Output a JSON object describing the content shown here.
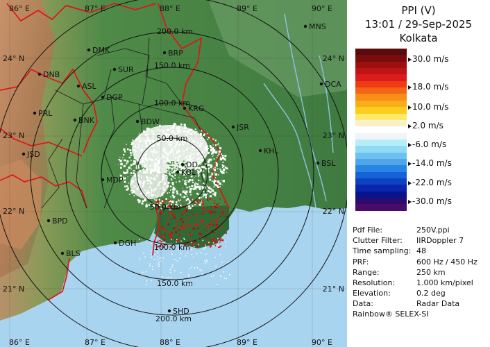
{
  "header": {
    "product": "PPI (V)",
    "datetime": "13:01 / 29-Sep-2025",
    "station": "Kolkata"
  },
  "colors": {
    "ocean": "#a9d4ef",
    "land_low": "#4f8a48",
    "land_hill": "#d29a68",
    "boundary": "#e01414",
    "district": "#222222",
    "ring": "#111111"
  },
  "longitude_labels": [
    "86° E",
    "87° E",
    "88° E",
    "89° E",
    "90° E"
  ],
  "latitude_labels": [
    "24° N",
    "23° N",
    "22° N",
    "21° N"
  ],
  "range_rings": [
    "50.0 km",
    "100.0 km",
    "150.0 km",
    "200.0 km"
  ],
  "places": [
    "MNS",
    "DMK",
    "BRP",
    "DNB",
    "SUR",
    "ASL",
    "DGP",
    "DCA",
    "PRL",
    "BNK",
    "KRG",
    "BDW",
    "JSR",
    "JSD",
    "KHL",
    "DD",
    "BSL",
    "MDP",
    "KOL",
    "BPD",
    "BLS",
    "DGH",
    "SHD"
  ],
  "color_scale": [
    {
      "color": "#5a0a0a"
    },
    {
      "color": "#7a0c0c"
    },
    {
      "color": "#9c1010"
    },
    {
      "color": "#be1414"
    },
    {
      "color": "#dc1c1c"
    },
    {
      "color": "#f03a14"
    },
    {
      "color": "#f46416"
    },
    {
      "color": "#f78e18"
    },
    {
      "color": "#f9ad1a"
    },
    {
      "color": "#fccd1c"
    },
    {
      "color": "#fde96a"
    },
    {
      "color": "#f7f1c8"
    },
    {
      "color": "#ffffff"
    },
    {
      "color": "#f1f5f8"
    },
    {
      "color": "#b5eef8"
    },
    {
      "color": "#8fdaf5"
    },
    {
      "color": "#6ec0ef"
    },
    {
      "color": "#4ea6ea"
    },
    {
      "color": "#2a86e4"
    },
    {
      "color": "#1563d6"
    },
    {
      "color": "#0d42c2"
    },
    {
      "color": "#0a26ac"
    },
    {
      "color": "#09148c"
    },
    {
      "color": "#2a0c6e"
    },
    {
      "color": "#4a0a6a"
    }
  ],
  "scale_labels": [
    "30.0 m/s",
    "18.0 m/s",
    "10.0 m/s",
    "2.0 m/s",
    "-6.0 m/s",
    "-14.0 m/s",
    "-22.0 m/s",
    "-30.0 m/s"
  ],
  "info": [
    {
      "key": "Pdf File:",
      "value": "250V.ppi"
    },
    {
      "key": "Clutter Filter:",
      "value": "IIRDoppler 7"
    },
    {
      "key": "Time sampling:",
      "value": "48"
    },
    {
      "key": "PRF:",
      "value": "600 Hz / 450 Hz"
    },
    {
      "key": "Range:",
      "value": "250 km"
    },
    {
      "key": "Resolution:",
      "value": "1.000 km/pixel"
    },
    {
      "key": "Elevation:",
      "value": "0.2 deg"
    },
    {
      "key": "Data:",
      "value": "Radar Data"
    }
  ],
  "footer": "Rainbow® SELEX-SI"
}
